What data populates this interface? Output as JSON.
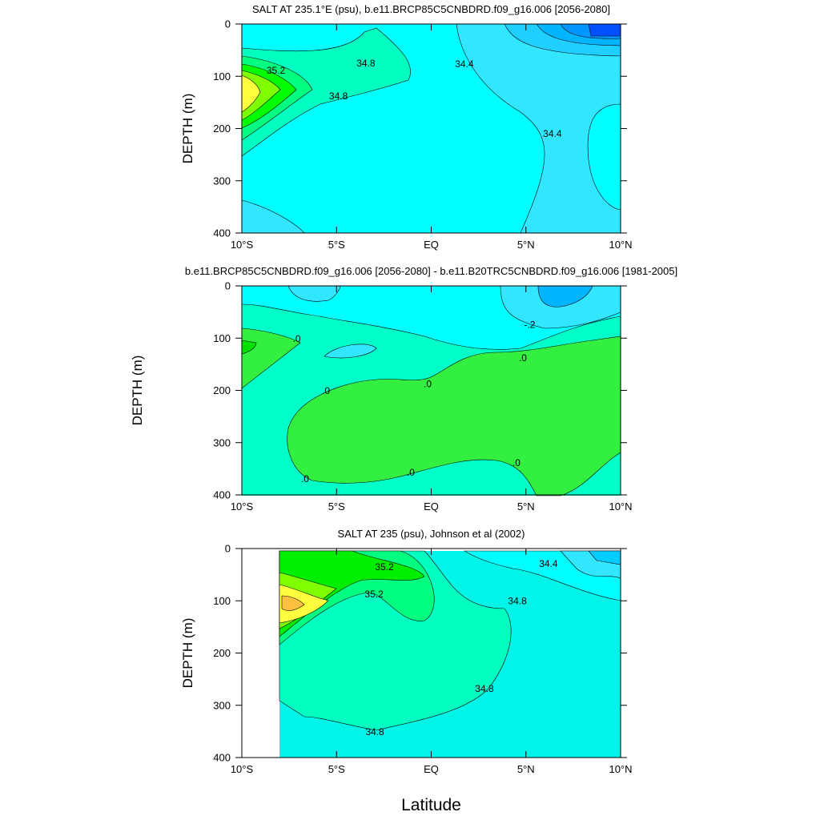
{
  "chart_data": [
    {
      "type": "contour",
      "title": "SALT AT 235.1°E (psu), b.e11.BRCP85C5CNBDRD.f09_g16.006 [2056-2080]",
      "ylabel": "DEPTH (m)",
      "xlim": [
        -10,
        10
      ],
      "ylim": [
        400,
        0
      ],
      "xticks": [
        {
          "value": -10,
          "label": "10°S"
        },
        {
          "value": -5,
          "label": "5°S"
        },
        {
          "value": 0,
          "label": "EQ"
        },
        {
          "value": 5,
          "label": "5°N"
        },
        {
          "value": 10,
          "label": "10°N"
        }
      ],
      "yticks": [
        0,
        100,
        200,
        300,
        400
      ],
      "contour_labels": [
        {
          "text": "35.2",
          "x": -8.2,
          "y": 89
        },
        {
          "text": "34.8",
          "x": -3.45,
          "y": 75
        },
        {
          "text": "34.8",
          "x": -4.9,
          "y": 138
        },
        {
          "text": "34.4",
          "x": 1.75,
          "y": 77
        },
        {
          "text": "34.4",
          "x": 6.4,
          "y": 210
        }
      ]
    },
    {
      "type": "contour",
      "title": "b.e11.BRCP85C5CNBDRD.f09_g16.006 [2056-2080] - b.e11.B20TRC5CNBDRD.f09_g16.006 [1981-2005]",
      "ylabel": "DEPTH (m)",
      "xlim": [
        -10,
        10
      ],
      "ylim": [
        400,
        0
      ],
      "xticks": [
        {
          "value": -10,
          "label": "10°S"
        },
        {
          "value": -5,
          "label": "5°S"
        },
        {
          "value": 0,
          "label": "EQ"
        },
        {
          "value": 5,
          "label": "5°N"
        },
        {
          "value": 10,
          "label": "10°N"
        }
      ],
      "yticks": [
        0,
        100,
        200,
        300,
        400
      ],
      "contour_labels": [
        {
          "text": ".0",
          "x": -7.1,
          "y": 101
        },
        {
          "text": "-.2",
          "x": 5.2,
          "y": 74
        },
        {
          "text": ".0",
          "x": -5.56,
          "y": 201
        },
        {
          "text": ".0",
          "x": -0.19,
          "y": 188
        },
        {
          "text": ".0",
          "x": 4.84,
          "y": 138
        },
        {
          "text": ".0",
          "x": -6.66,
          "y": 369
        },
        {
          "text": ".0",
          "x": -1.08,
          "y": 357
        },
        {
          "text": ".0",
          "x": 4.5,
          "y": 339
        }
      ]
    },
    {
      "type": "contour",
      "title": "SALT AT 235 (psu), Johnson et al (2002)",
      "ylabel": "DEPTH (m)",
      "xlabel": "Latitude",
      "xlim": [
        -10,
        10
      ],
      "ylim": [
        400,
        0
      ],
      "xticks": [
        {
          "value": -10,
          "label": "10°S"
        },
        {
          "value": -5,
          "label": "5°S"
        },
        {
          "value": 0,
          "label": "EQ"
        },
        {
          "value": 5,
          "label": "5°N"
        },
        {
          "value": 10,
          "label": "10°N"
        }
      ],
      "yticks": [
        0,
        100,
        200,
        300,
        400
      ],
      "contour_labels": [
        {
          "text": "35.2",
          "x": -2.47,
          "y": 35
        },
        {
          "text": "35.2",
          "x": -3.02,
          "y": 87
        },
        {
          "text": "34.4",
          "x": 6.19,
          "y": 29
        },
        {
          "text": "34.8",
          "x": 4.55,
          "y": 100
        },
        {
          "text": "34.8",
          "x": 2.81,
          "y": 268
        },
        {
          "text": "34.8",
          "x": -2.98,
          "y": 351
        }
      ]
    }
  ]
}
